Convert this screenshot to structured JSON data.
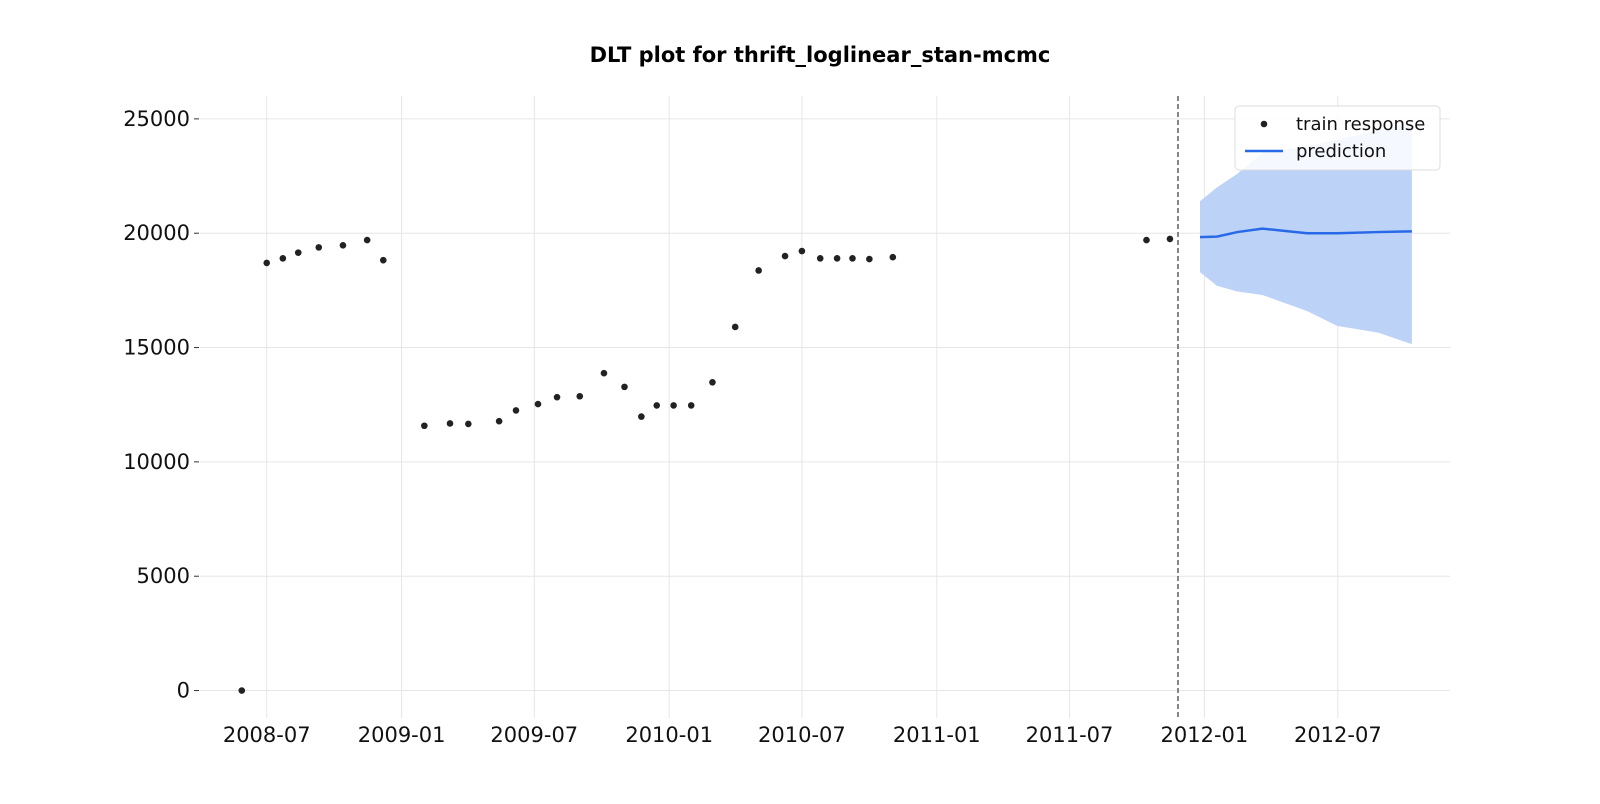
{
  "chart_data": {
    "type": "scatter",
    "title": "DLT plot for thrift_loglinear_stan-mcmc",
    "xlabel": "",
    "ylabel": "",
    "x_type": "date",
    "xlim": [
      "2008-04-01",
      "2012-12-01"
    ],
    "ylim": [
      -1200,
      26000
    ],
    "x_ticks": [
      "2008-07",
      "2009-01",
      "2009-07",
      "2010-01",
      "2010-07",
      "2011-01",
      "2011-07",
      "2012-01",
      "2012-07"
    ],
    "y_ticks": [
      0,
      5000,
      10000,
      15000,
      20000,
      25000
    ],
    "grid": true,
    "legend_position": "top-right",
    "train_cutoff": "2011-11-26",
    "series": [
      {
        "name": "train response",
        "kind": "scatter",
        "color": "#222222",
        "points": [
          {
            "x": "2008-05-28",
            "y": 0
          },
          {
            "x": "2008-07-01",
            "y": 18700
          },
          {
            "x": "2008-07-23",
            "y": 18900
          },
          {
            "x": "2008-08-13",
            "y": 19150
          },
          {
            "x": "2008-09-10",
            "y": 19380
          },
          {
            "x": "2008-10-13",
            "y": 19470
          },
          {
            "x": "2008-11-15",
            "y": 19700
          },
          {
            "x": "2008-12-07",
            "y": 18820
          },
          {
            "x": "2009-02-01",
            "y": 11580
          },
          {
            "x": "2009-03-08",
            "y": 11680
          },
          {
            "x": "2009-04-02",
            "y": 11660
          },
          {
            "x": "2009-05-14",
            "y": 11780
          },
          {
            "x": "2009-06-06",
            "y": 12250
          },
          {
            "x": "2009-07-06",
            "y": 12530
          },
          {
            "x": "2009-08-01",
            "y": 12830
          },
          {
            "x": "2009-09-01",
            "y": 12870
          },
          {
            "x": "2009-10-04",
            "y": 13880
          },
          {
            "x": "2009-11-01",
            "y": 13280
          },
          {
            "x": "2009-11-24",
            "y": 11980
          },
          {
            "x": "2009-12-15",
            "y": 12470
          },
          {
            "x": "2010-01-07",
            "y": 12470
          },
          {
            "x": "2010-01-31",
            "y": 12470
          },
          {
            "x": "2010-03-01",
            "y": 13480
          },
          {
            "x": "2010-04-01",
            "y": 15900
          },
          {
            "x": "2010-05-03",
            "y": 18370
          },
          {
            "x": "2010-06-08",
            "y": 19000
          },
          {
            "x": "2010-07-01",
            "y": 19220
          },
          {
            "x": "2010-07-26",
            "y": 18900
          },
          {
            "x": "2010-08-18",
            "y": 18900
          },
          {
            "x": "2010-09-08",
            "y": 18900
          },
          {
            "x": "2010-10-01",
            "y": 18870
          },
          {
            "x": "2010-11-02",
            "y": 18950
          },
          {
            "x": "2011-10-14",
            "y": 19700
          },
          {
            "x": "2011-11-15",
            "y": 19750
          }
        ]
      },
      {
        "name": "prediction",
        "kind": "line",
        "color": "#2869e8",
        "band_color": "#bcd2f7",
        "points": [
          {
            "x": "2011-12-26",
            "y": 19830,
            "lower": 18300,
            "upper": 21400
          },
          {
            "x": "2012-01-18",
            "y": 19850,
            "lower": 17700,
            "upper": 22000
          },
          {
            "x": "2012-02-15",
            "y": 20050,
            "lower": 17450,
            "upper": 22600
          },
          {
            "x": "2012-03-20",
            "y": 20200,
            "lower": 17300,
            "upper": 23500
          },
          {
            "x": "2012-05-20",
            "y": 20000,
            "lower": 16600,
            "upper": 23800
          },
          {
            "x": "2012-06-30",
            "y": 20000,
            "lower": 15950,
            "upper": 24100
          },
          {
            "x": "2012-08-25",
            "y": 20050,
            "lower": 15650,
            "upper": 24500
          },
          {
            "x": "2012-10-10",
            "y": 20080,
            "lower": 15150,
            "upper": 24800
          }
        ]
      }
    ]
  }
}
